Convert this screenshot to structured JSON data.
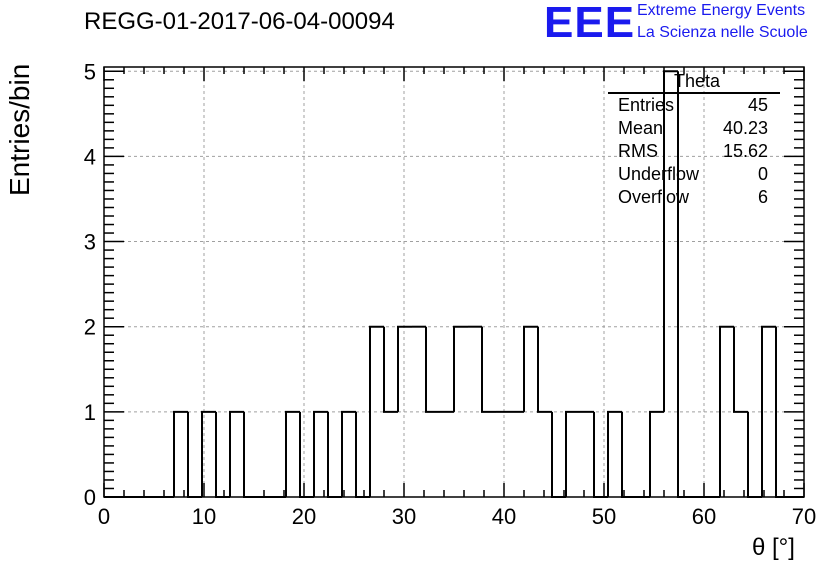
{
  "header": {
    "title": "REGG-01-2017-06-04-00094",
    "logo_text": "EEE",
    "logo_line1": "Extreme Energy Events",
    "logo_line2": "La Scienza nelle Scuole"
  },
  "stats_box": {
    "title": "Theta",
    "rows": [
      {
        "label": "Entries",
        "value": "45"
      },
      {
        "label": "Mean",
        "value": "40.23"
      },
      {
        "label": "RMS",
        "value": "15.62"
      },
      {
        "label": "Underflow",
        "value": "0"
      },
      {
        "label": "Overflow",
        "value": "6"
      }
    ]
  },
  "chart_data": {
    "type": "bar",
    "title": "REGG-01-2017-06-04-00094",
    "xlabel": "θ [°]",
    "ylabel": "Entries/bin",
    "xlim": [
      0,
      70
    ],
    "ylim": [
      0,
      5
    ],
    "bin_edges": [
      0,
      1.4,
      2.8,
      4.2,
      5.6,
      7,
      8.4,
      9.8,
      11.2,
      12.6,
      14,
      15.4,
      16.8,
      18.2,
      19.6,
      21,
      22.4,
      23.8,
      25.2,
      26.6,
      28,
      29.4,
      30.8,
      32.2,
      33.6,
      35,
      36.4,
      37.8,
      39.2,
      40.6,
      42,
      43.4,
      44.8,
      46.2,
      47.6,
      49,
      50.4,
      51.8,
      53.2,
      54.6,
      56,
      57.4,
      58.8,
      60.2,
      61.6,
      63,
      64.4,
      65.8,
      67.2,
      68.6,
      70
    ],
    "values": [
      0,
      0,
      0,
      0,
      0,
      1,
      0,
      1,
      0,
      1,
      0,
      0,
      0,
      1,
      0,
      1,
      0,
      1,
      0,
      2,
      1,
      2,
      2,
      1,
      1,
      2,
      2,
      1,
      1,
      1,
      2,
      1,
      0,
      1,
      1,
      0,
      1,
      0,
      0,
      1,
      5,
      0,
      0,
      0,
      2,
      1,
      0,
      2,
      0,
      0
    ],
    "xticks": [
      0,
      10,
      20,
      30,
      40,
      50,
      60,
      70
    ],
    "yticks": [
      0,
      1,
      2,
      3,
      4,
      5
    ],
    "grid": true,
    "colors": {
      "line": "#000000",
      "grid": "#a0a0a0",
      "logo": "#1a1aee"
    }
  }
}
